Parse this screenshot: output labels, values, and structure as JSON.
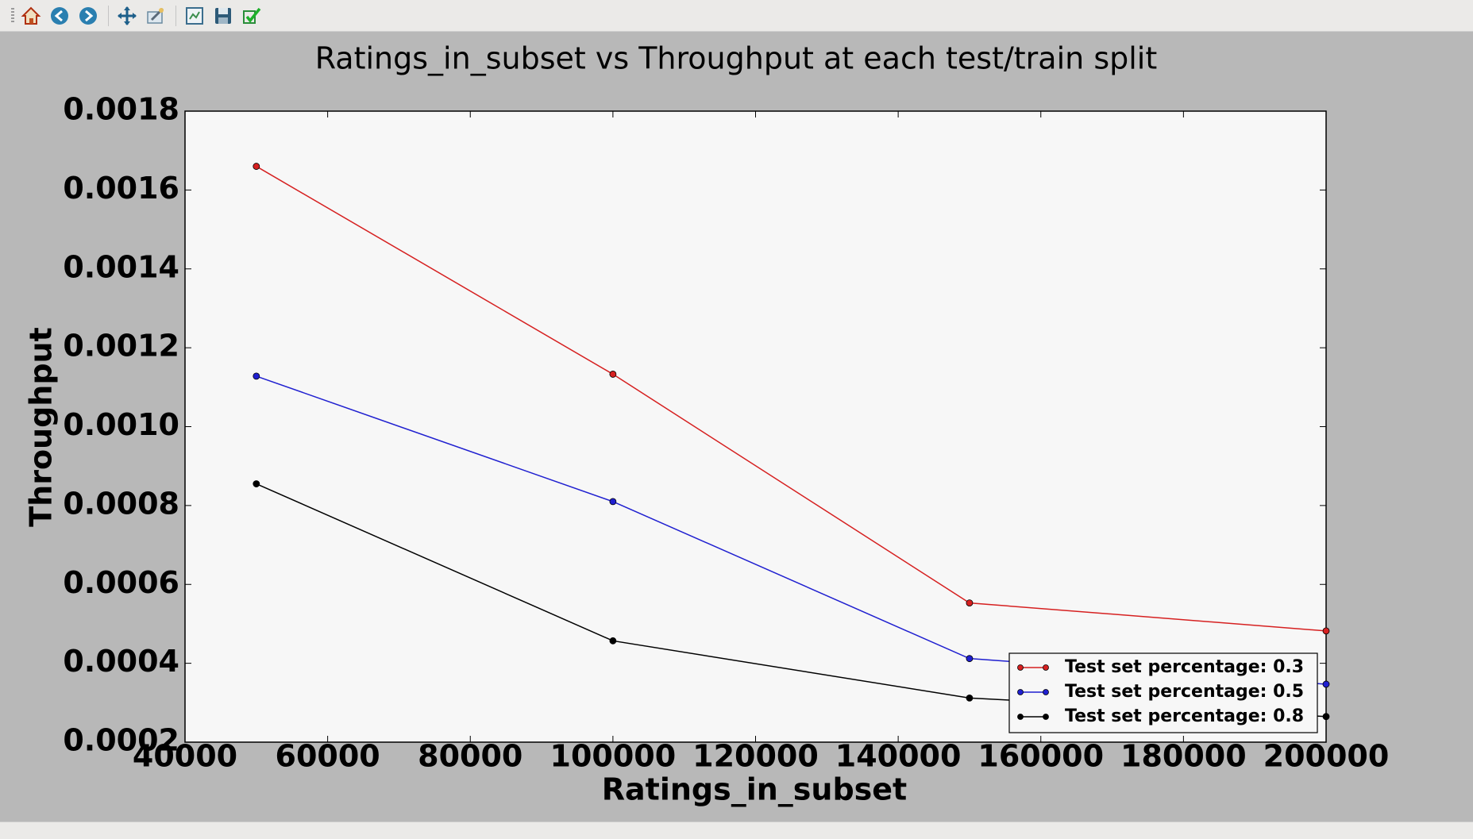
{
  "toolbar": {
    "icons": [
      "home-icon",
      "back-arrow-icon",
      "forward-arrow-icon",
      "pan-icon",
      "zoom-icon",
      "configure-subplots-icon",
      "save-icon",
      "edit-parameters-icon"
    ]
  },
  "chart_data": {
    "type": "line",
    "title": "Ratings_in_subset vs Throughput at each test/train split",
    "xlabel": "Ratings_in_subset",
    "ylabel": "Throughput",
    "xlim": [
      40000,
      200000
    ],
    "ylim": [
      0.0002,
      0.0018
    ],
    "xticks": [
      "40000",
      "60000",
      "80000",
      "100000",
      "120000",
      "140000",
      "160000",
      "180000",
      "200000"
    ],
    "yticks": [
      "0.0002",
      "0.0004",
      "0.0006",
      "0.0008",
      "0.0010",
      "0.0012",
      "0.0014",
      "0.0016",
      "0.0018"
    ],
    "legend_position": "lower-right",
    "grid": false,
    "series": [
      {
        "name": "Test set percentage: 0.3",
        "color": "#d62020",
        "x": [
          50000,
          100000,
          150000,
          200000
        ],
        "y": [
          0.00166,
          0.001133,
          0.000553,
          0.000482
        ]
      },
      {
        "name": "Test set percentage: 0.5",
        "color": "#1f1fd0",
        "x": [
          50000,
          100000,
          150000,
          200000
        ],
        "y": [
          0.001128,
          0.00081,
          0.000412,
          0.000347
        ]
      },
      {
        "name": "Test set percentage: 0.8",
        "color": "#000000",
        "x": [
          50000,
          100000,
          150000,
          200000
        ],
        "y": [
          0.000855,
          0.000457,
          0.000312,
          0.000265
        ]
      }
    ]
  }
}
